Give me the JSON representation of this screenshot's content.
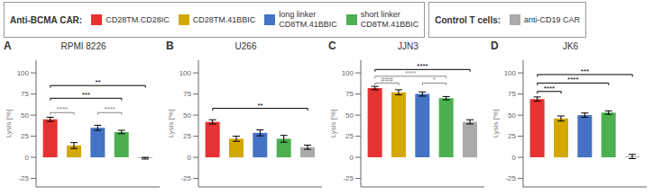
{
  "chart_data": [
    {
      "type": "bar",
      "title": "A",
      "subtitle": "RPMI 8226",
      "ylabel": "Lysis [%]",
      "categories": [
        "CD28TM.CD28IC",
        "CD28TM.41BBIC",
        "long linker\nCD8TM.41BBIC",
        "short linker\nCD8TM.41BBIC",
        "anti-CD19 CAR"
      ],
      "values": [
        45,
        14,
        35,
        30,
        -1
      ],
      "errors": [
        2.5,
        3.5,
        3.0,
        2.0,
        1.0
      ],
      "colors": [
        "#e63232",
        "#d4a800",
        "#4472c4",
        "#4caf50",
        "#aaaaaa"
      ],
      "ylim": [
        -35,
        115
      ],
      "yticks": [
        -25,
        0,
        25,
        50,
        75,
        100
      ],
      "tick_labels": "y",
      "annotations": [
        {
          "x1": 0,
          "x2": 1,
          "y": 53,
          "label": "****",
          "color": "#888888"
        },
        {
          "x1": 2,
          "x2": 3,
          "y": 53,
          "label": "****",
          "color": "#888888"
        },
        {
          "x1": 0,
          "x2": 3,
          "y": 70,
          "label": "***",
          "color": "#000000"
        },
        {
          "x1": 0,
          "x2": 4,
          "y": 85,
          "label": "**",
          "color": "#000000"
        }
      ]
    },
    {
      "type": "bar",
      "title": "B",
      "subtitle": "U266",
      "ylabel": "Lysis [%]",
      "categories": [
        "CD28TM.CD28IC",
        "CD28TM.41BBIC",
        "long linker\nCD8TM.41BBIC",
        "short linker\nCD8TM.41BBIC",
        "anti-CD19 CAR"
      ],
      "values": [
        42,
        22,
        29,
        22,
        12
      ],
      "errors": [
        2.5,
        3.0,
        3.5,
        4.0,
        2.5
      ],
      "colors": [
        "#e63232",
        "#d4a800",
        "#4472c4",
        "#4caf50",
        "#aaaaaa"
      ],
      "ylim": [
        -35,
        115
      ],
      "yticks": [
        -25,
        0,
        25,
        50,
        75,
        100
      ],
      "tick_labels": "y",
      "annotations": [
        {
          "x1": 0,
          "x2": 4,
          "y": 58,
          "label": "**",
          "color": "#000000"
        }
      ]
    },
    {
      "type": "bar",
      "title": "C",
      "subtitle": "JJN3",
      "ylabel": "Lysis [%]",
      "categories": [
        "CD28TM.CD28IC",
        "CD28TM.41BBIC",
        "long linker\nCD8TM.41BBIC",
        "short linker\nCD8TM.41BBIC",
        "anti-CD19 CAR"
      ],
      "values": [
        82,
        77,
        75,
        70,
        42
      ],
      "errors": [
        2.0,
        3.0,
        2.5,
        2.0,
        2.5
      ],
      "colors": [
        "#e63232",
        "#d4a800",
        "#4472c4",
        "#4caf50",
        "#aaaaaa"
      ],
      "ylim": [
        -35,
        115
      ],
      "yticks": [
        -25,
        0,
        25,
        50,
        75,
        100
      ],
      "tick_labels": "y",
      "annotations": [
        {
          "x1": 0,
          "x2": 1,
          "y": 88,
          "label": "###",
          "color": "#888888"
        },
        {
          "x1": 2,
          "x2": 3,
          "y": 88,
          "label": "*",
          "color": "#888888"
        },
        {
          "x1": 0,
          "x2": 3,
          "y": 96,
          "label": "****",
          "color": "#888888"
        },
        {
          "x1": 0,
          "x2": 4,
          "y": 104,
          "label": "****",
          "color": "#000000"
        }
      ]
    },
    {
      "type": "bar",
      "title": "D",
      "subtitle": "JK6",
      "ylabel": "Lysis [%]",
      "categories": [
        "CD28TM.CD28IC",
        "CD28TM.41BBIC",
        "long linker\nCD8TM.41BBIC",
        "short linker\nCD8TM.41BBIC",
        "anti-CD19 CAR"
      ],
      "values": [
        69,
        46,
        50,
        53,
        1
      ],
      "errors": [
        2.5,
        3.0,
        2.5,
        2.0,
        2.5
      ],
      "colors": [
        "#e63232",
        "#d4a800",
        "#4472c4",
        "#4caf50",
        "#aaaaaa"
      ],
      "ylim": [
        -35,
        115
      ],
      "yticks": [
        -25,
        0,
        25,
        50,
        75,
        100
      ],
      "tick_labels": "y",
      "annotations": [
        {
          "x1": 0,
          "x2": 1,
          "y": 78,
          "label": "****",
          "color": "#000000"
        },
        {
          "x1": 0,
          "x2": 3,
          "y": 88,
          "label": "****",
          "color": "#000000"
        },
        {
          "x1": 0,
          "x2": 4,
          "y": 98,
          "label": "***",
          "color": "#000000"
        }
      ]
    }
  ],
  "legend_groups": [
    {
      "title": "Anti-BCMA CAR:",
      "categories": [
        "CD28TM.CD28IC",
        "CD28TM.41BBIC",
        "long linker\nCD8TM.41BBIC",
        "short linker\nCD8TM.41BBIC"
      ]
    },
    {
      "title": "Control T cells:",
      "categories": [
        "anti-CD19 CAR"
      ]
    }
  ]
}
